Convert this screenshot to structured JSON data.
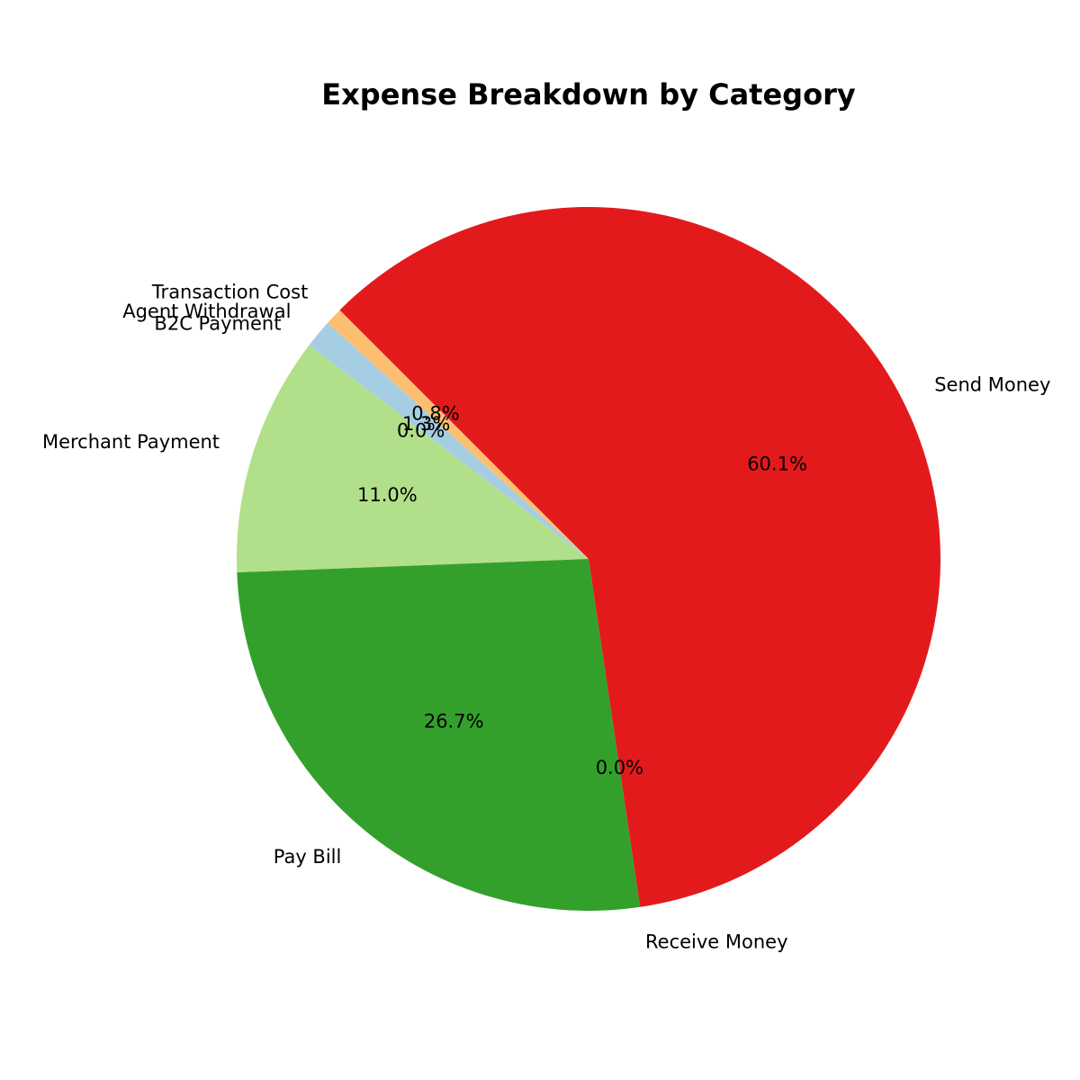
{
  "chart_data": {
    "type": "pie",
    "title": "Expense Breakdown by Category",
    "start_angle_deg": 135,
    "direction": "counterclockwise",
    "slices": [
      {
        "label": "Transaction Cost",
        "value": 0.8,
        "pct_label": "0.8%",
        "color": "#fdbf6f"
      },
      {
        "label": "Agent Withdrawal",
        "value": 1.3,
        "pct_label": "1.3%",
        "color": "#a6cee3"
      },
      {
        "label": "B2C Payment",
        "value": 0.0,
        "pct_label": "0.0%",
        "color": "#1f78b4"
      },
      {
        "label": "Merchant Payment",
        "value": 11.0,
        "pct_label": "11.0%",
        "color": "#b2df8a"
      },
      {
        "label": "Pay Bill",
        "value": 26.7,
        "pct_label": "26.7%",
        "color": "#33a02c"
      },
      {
        "label": "Receive Money",
        "value": 0.0,
        "pct_label": "0.0%",
        "color": "#fb9a99"
      },
      {
        "label": "Send Money",
        "value": 60.1,
        "pct_label": "60.1%",
        "color": "#e31a1c"
      }
    ]
  }
}
